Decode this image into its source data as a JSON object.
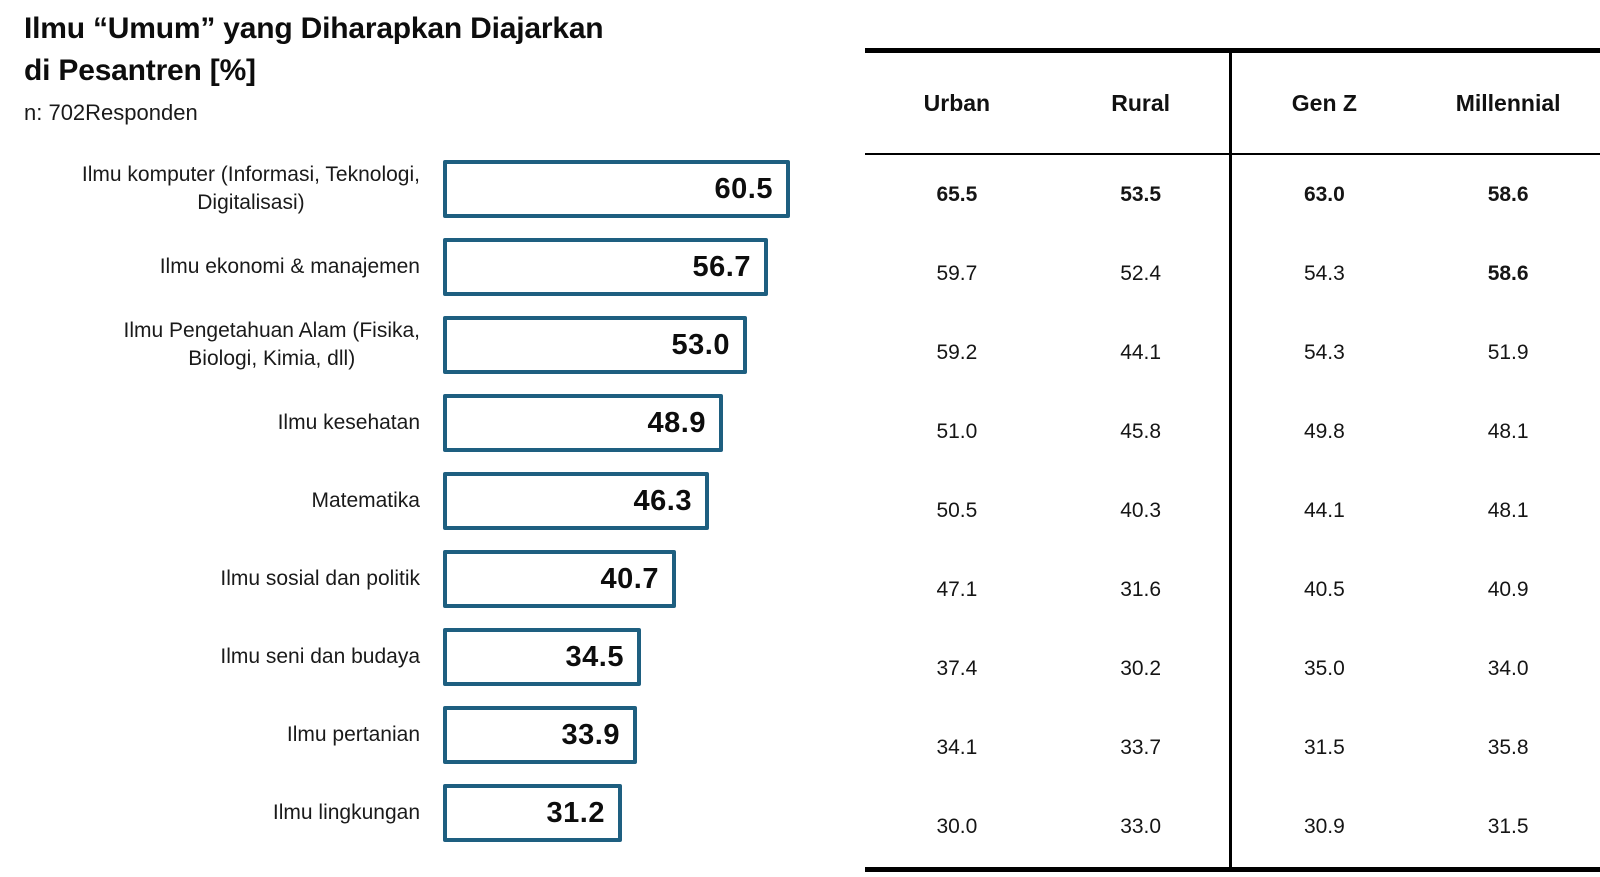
{
  "header": {
    "title": "Ilmu “Umum” yang Diharapkan Diajarkan\ndi Pesantren [%]",
    "subtitle": "n: 702Responden"
  },
  "chart_data": {
    "type": "bar",
    "orientation": "horizontal",
    "title": "Ilmu “Umum” yang Diharapkan Diajarkan di Pesantren [%]",
    "sample_label": "n: 702Responden",
    "categories": [
      "Ilmu komputer (Informasi, Teknologi, Digitalisasi)",
      "Ilmu ekonomi & manajemen",
      "Ilmu Pengetahuan Alam (Fisika, Biologi, Kimia, dll)",
      "Ilmu kesehatan",
      "Matematika",
      "Ilmu sosial dan politik",
      "Ilmu seni dan budaya",
      "Ilmu pertanian",
      "Ilmu lingkungan"
    ],
    "display_labels": [
      "Ilmu komputer (Informasi, Teknologi,\nDigitalisasi)",
      "Ilmu ekonomi & manajemen",
      "Ilmu Pengetahuan Alam (Fisika,\nBiologi, Kimia, dll)",
      "Ilmu kesehatan",
      "Matematika",
      "Ilmu sosial dan politik",
      "Ilmu seni dan budaya",
      "Ilmu pertanian",
      "Ilmu lingkungan"
    ],
    "values": [
      60.5,
      56.7,
      53.0,
      48.9,
      46.3,
      40.7,
      34.5,
      33.9,
      31.2
    ],
    "value_labels": [
      "60.5",
      "56.7",
      "53.0",
      "48.9",
      "46.3",
      "40.7",
      "34.5",
      "33.9",
      "31.2"
    ],
    "xlim": [
      0,
      61
    ],
    "grid": false,
    "bar_fill": "#ffffff",
    "bar_border": "#1E5F80",
    "legend": "none"
  },
  "table": {
    "columns": [
      {
        "label": "Urban"
      },
      {
        "label": "Rural"
      },
      {
        "label": "Gen Z"
      },
      {
        "label": "Millennial"
      }
    ],
    "divider_after_column": 2,
    "rows": [
      {
        "category": "Ilmu komputer (Informasi, Teknologi, Digitalisasi)",
        "values": [
          "65.5",
          "53.5",
          "63.0",
          "58.6"
        ],
        "bold": [
          true,
          true,
          true,
          true
        ]
      },
      {
        "category": "Ilmu ekonomi & manajemen",
        "values": [
          "59.7",
          "52.4",
          "54.3",
          "58.6"
        ],
        "bold": [
          false,
          false,
          false,
          true
        ]
      },
      {
        "category": "Ilmu Pengetahuan Alam (Fisika, Biologi, Kimia, dll)",
        "values": [
          "59.2",
          "44.1",
          "54.3",
          "51.9"
        ],
        "bold": [
          false,
          false,
          false,
          false
        ]
      },
      {
        "category": "Ilmu kesehatan",
        "values": [
          "51.0",
          "45.8",
          "49.8",
          "48.1"
        ],
        "bold": [
          false,
          false,
          false,
          false
        ]
      },
      {
        "category": "Matematika",
        "values": [
          "50.5",
          "40.3",
          "44.1",
          "48.1"
        ],
        "bold": [
          false,
          false,
          false,
          false
        ]
      },
      {
        "category": "Ilmu sosial dan politik",
        "values": [
          "47.1",
          "31.6",
          "40.5",
          "40.9"
        ],
        "bold": [
          false,
          false,
          false,
          false
        ]
      },
      {
        "category": "Ilmu seni dan budaya",
        "values": [
          "37.4",
          "30.2",
          "35.0",
          "34.0"
        ],
        "bold": [
          false,
          false,
          false,
          false
        ]
      },
      {
        "category": "Ilmu pertanian",
        "values": [
          "34.1",
          "33.7",
          "31.5",
          "35.8"
        ],
        "bold": [
          false,
          false,
          false,
          false
        ]
      },
      {
        "category": "Ilmu lingkungan",
        "values": [
          "30.0",
          "33.0",
          "30.9",
          "31.5"
        ],
        "bold": [
          false,
          false,
          false,
          false
        ]
      }
    ]
  },
  "colors": {
    "bar_border": "#1E5F80",
    "bar_fill": "#ffffff",
    "text": "#111111",
    "rule": "#000000"
  }
}
